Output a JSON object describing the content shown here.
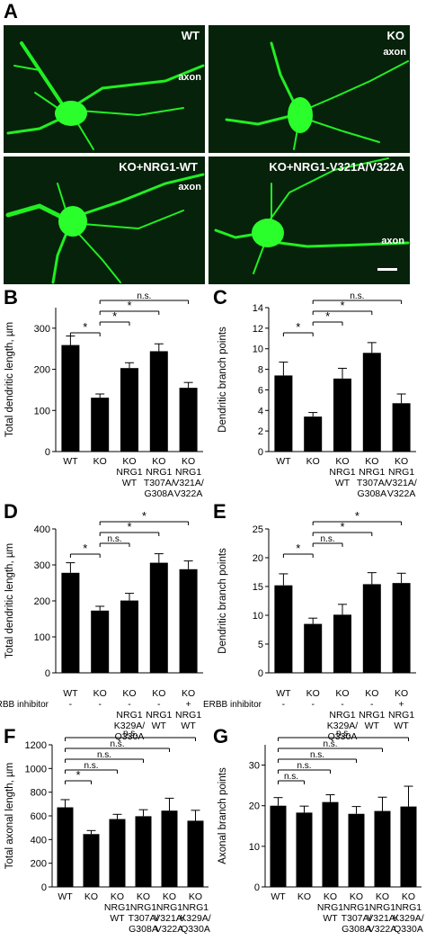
{
  "figure_label": "A",
  "micrographs": [
    {
      "title": "WT",
      "axon": "axon"
    },
    {
      "title": "KO",
      "axon": "axon"
    },
    {
      "title": "KO+NRG1-WT",
      "axon": "axon"
    },
    {
      "title": "KO+NRG1-V321A/V322A",
      "axon": "axon"
    }
  ],
  "colors": {
    "bar": "#000000",
    "cell": "#22ee22",
    "background": "#06220a"
  },
  "chart_data": [
    {
      "panel": "B",
      "type": "bar",
      "ylabel": "Total dendritic length, µm",
      "ylim": [
        0,
        350
      ],
      "yticks": [
        0,
        100,
        200,
        300
      ],
      "categories": [
        [
          "WT"
        ],
        [
          "KO"
        ],
        [
          "KO",
          "NRG1",
          "WT"
        ],
        [
          "KO",
          "NRG1",
          "T307A/",
          "G308A"
        ],
        [
          "KO",
          "NRG1",
          "V321A/",
          "V322A"
        ]
      ],
      "values": [
        259,
        131,
        203,
        244,
        155
      ],
      "errors": [
        22,
        9,
        13,
        18,
        13
      ],
      "comparisons": [
        {
          "from": 0,
          "to": 1,
          "label": "*"
        },
        {
          "from": 1,
          "to": 2,
          "label": "*"
        },
        {
          "from": 1,
          "to": 3,
          "label": "*"
        },
        {
          "from": 1,
          "to": 4,
          "label": "n.s."
        }
      ]
    },
    {
      "panel": "C",
      "type": "bar",
      "ylabel": "Dendritic branch points",
      "ylim": [
        0,
        14
      ],
      "yticks": [
        0,
        2,
        4,
        6,
        8,
        10,
        12,
        14
      ],
      "categories": [
        [
          "WT"
        ],
        [
          "KO"
        ],
        [
          "KO",
          "NRG1",
          "WT"
        ],
        [
          "KO",
          "NRG1",
          "T307A/",
          "G308A"
        ],
        [
          "KO",
          "NRG1",
          "V321A/",
          "V322A"
        ]
      ],
      "values": [
        7.4,
        3.4,
        7.1,
        9.6,
        4.7
      ],
      "errors": [
        1.3,
        0.4,
        1.0,
        1.0,
        0.9
      ],
      "comparisons": [
        {
          "from": 0,
          "to": 1,
          "label": "*"
        },
        {
          "from": 1,
          "to": 2,
          "label": "*"
        },
        {
          "from": 1,
          "to": 3,
          "label": "*"
        },
        {
          "from": 1,
          "to": 4,
          "label": "n.s."
        }
      ]
    },
    {
      "panel": "D",
      "type": "bar",
      "ylabel": "Total dendritic length, µm",
      "ylim": [
        0,
        400
      ],
      "yticks": [
        0,
        100,
        200,
        300,
        400
      ],
      "categories": [
        [
          "WT",
          "-"
        ],
        [
          "KO",
          "-"
        ],
        [
          "KO",
          "-",
          "NRG1",
          "K329A/",
          "Q330A"
        ],
        [
          "KO",
          "-",
          "NRG1",
          "WT"
        ],
        [
          "KO",
          "+",
          "NRG1",
          "WT"
        ]
      ],
      "row_label": "ERBB inhibitor",
      "values": [
        278,
        173,
        201,
        306,
        288
      ],
      "errors": [
        28,
        12,
        20,
        25,
        23
      ],
      "comparisons": [
        {
          "from": 0,
          "to": 1,
          "label": "*"
        },
        {
          "from": 1,
          "to": 2,
          "label": "n.s."
        },
        {
          "from": 1,
          "to": 3,
          "label": "*"
        },
        {
          "from": 1,
          "to": 4,
          "label": "*"
        }
      ]
    },
    {
      "panel": "E",
      "type": "bar",
      "ylabel": "Dendritic branch points",
      "ylim": [
        0,
        25
      ],
      "yticks": [
        0,
        5,
        10,
        15,
        20,
        25
      ],
      "categories": [
        [
          "WT",
          "-"
        ],
        [
          "KO",
          "-"
        ],
        [
          "KO",
          "-",
          "NRG1",
          "K329A/",
          "Q330A"
        ],
        [
          "KO",
          "-",
          "NRG1",
          "WT"
        ],
        [
          "KO",
          "+",
          "NRG1",
          "WT"
        ]
      ],
      "row_label": "ERBB inhibitor",
      "values": [
        15.2,
        8.5,
        10.1,
        15.4,
        15.6
      ],
      "errors": [
        2.0,
        1.0,
        1.8,
        2.0,
        1.7
      ],
      "comparisons": [
        {
          "from": 0,
          "to": 1,
          "label": "*"
        },
        {
          "from": 1,
          "to": 2,
          "label": "n.s."
        },
        {
          "from": 1,
          "to": 3,
          "label": "*"
        },
        {
          "from": 1,
          "to": 4,
          "label": "*"
        }
      ]
    },
    {
      "panel": "F",
      "type": "bar",
      "ylabel": "Total axonal length, µm",
      "ylim": [
        0,
        1200
      ],
      "yticks": [
        0,
        200,
        400,
        600,
        800,
        1000,
        1200
      ],
      "categories": [
        [
          "WT"
        ],
        [
          "KO"
        ],
        [
          "KO",
          "NRG1",
          "WT"
        ],
        [
          "KO",
          "NRG1",
          "T307A/",
          "G308A"
        ],
        [
          "KO",
          "NRG1",
          "V321A/",
          "V322A"
        ],
        [
          "KO",
          "NRG1",
          "K329A/",
          "Q330A"
        ]
      ],
      "values": [
        672,
        446,
        573,
        597,
        644,
        559
      ],
      "errors": [
        65,
        30,
        40,
        55,
        105,
        88
      ],
      "comparisons": [
        {
          "from": 0,
          "to": 1,
          "label": "*"
        },
        {
          "from": 0,
          "to": 2,
          "label": "n.s."
        },
        {
          "from": 0,
          "to": 3,
          "label": "n.s."
        },
        {
          "from": 0,
          "to": 4,
          "label": "n.s."
        },
        {
          "from": 0,
          "to": 5,
          "label": "n.s."
        }
      ]
    },
    {
      "panel": "G",
      "type": "bar",
      "ylabel": "Axonal branch points",
      "ylim": [
        0,
        35
      ],
      "yticks": [
        0,
        10,
        20,
        30
      ],
      "categories": [
        [
          "WT"
        ],
        [
          "KO"
        ],
        [
          "KO",
          "NRG1",
          "WT"
        ],
        [
          "KO",
          "NRG1",
          "T307A/",
          "G308A"
        ],
        [
          "KO",
          "NRG1",
          "V321A/",
          "V322A"
        ],
        [
          "KO",
          "NRG1",
          "K329A/",
          "Q330A"
        ]
      ],
      "values": [
        20.0,
        18.3,
        20.9,
        18.0,
        18.7,
        19.8
      ],
      "errors": [
        2.0,
        1.6,
        1.8,
        1.8,
        3.4,
        5.0
      ],
      "comparisons": [
        {
          "from": 0,
          "to": 1,
          "label": "n.s."
        },
        {
          "from": 0,
          "to": 2,
          "label": "n.s."
        },
        {
          "from": 0,
          "to": 3,
          "label": "n.s."
        },
        {
          "from": 0,
          "to": 4,
          "label": "n.s."
        },
        {
          "from": 0,
          "to": 5,
          "label": "n.s."
        }
      ]
    }
  ]
}
